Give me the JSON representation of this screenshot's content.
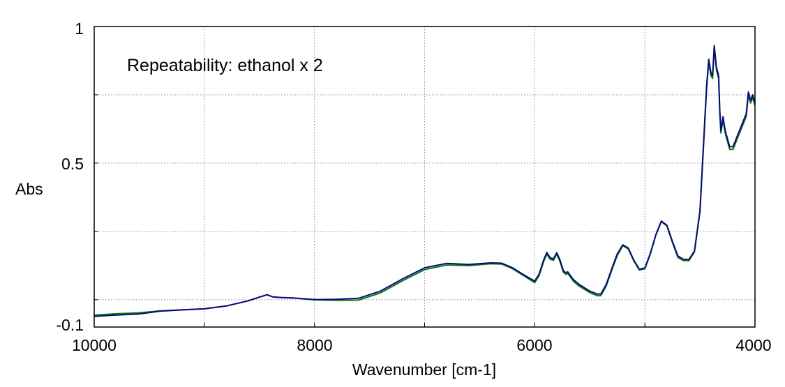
{
  "chart_data": {
    "type": "line",
    "title": "",
    "annotation": "Repeatability: ethanol x 2",
    "xlabel": "Wavenumber [cm-1]",
    "ylabel": "Abs",
    "xlim": [
      10000,
      4000
    ],
    "x_reversed": true,
    "ylim": [
      -0.1,
      1
    ],
    "grid": true,
    "grid_style": "dotted",
    "x_tick_labels": [
      "10000",
      "8000",
      "6000",
      "4000"
    ],
    "y_tick_labels": [
      "1",
      "0.5",
      "-0.1"
    ],
    "x_gridlines": [
      9000,
      8000,
      7000,
      6000,
      5000
    ],
    "y_gridlines": [
      0.75,
      0.5,
      0.25,
      0.0
    ],
    "series": [
      {
        "color": "#0a7a0a",
        "x": [
          10000,
          9800,
          9600,
          9400,
          9200,
          9000,
          8800,
          8600,
          8500,
          8430,
          8380,
          8300,
          8200,
          8000,
          7800,
          7600,
          7400,
          7200,
          7000,
          6800,
          6600,
          6400,
          6300,
          6200,
          6100,
          6000,
          5960,
          5920,
          5890,
          5860,
          5830,
          5800,
          5770,
          5740,
          5720,
          5700,
          5650,
          5600,
          5500,
          5430,
          5400,
          5350,
          5300,
          5250,
          5200,
          5150,
          5100,
          5050,
          5000,
          4950,
          4900,
          4850,
          4800,
          4750,
          4700,
          4650,
          4600,
          4550,
          4500,
          4470,
          4440,
          4420,
          4400,
          4385,
          4370,
          4350,
          4330,
          4320,
          4310,
          4290,
          4275,
          4265,
          4250,
          4230,
          4200,
          4180,
          4160,
          4140,
          4110,
          4080,
          4060,
          4040,
          4020,
          4000
        ],
        "y": [
          -0.0565,
          -0.0513,
          -0.0485,
          -0.0409,
          -0.0371,
          -0.0333,
          -0.0229,
          -0.0037,
          0.0096,
          0.0182,
          0.0105,
          0.0077,
          0.0068,
          -0.0005,
          -0.0025,
          -0.0016,
          0.025,
          0.0694,
          0.11,
          0.1272,
          0.1245,
          0.1318,
          0.1304,
          0.1132,
          0.0878,
          0.0622,
          0.0878,
          0.139,
          0.1672,
          0.1479,
          0.1443,
          0.1672,
          0.1392,
          0.1005,
          0.0933,
          0.096,
          0.0683,
          0.0509,
          0.0257,
          0.0146,
          0.0146,
          0.0509,
          0.1082,
          0.1624,
          0.1978,
          0.1857,
          0.1412,
          0.1085,
          0.1133,
          0.1675,
          0.236,
          0.286,
          0.27,
          0.21,
          0.155,
          0.143,
          0.143,
          0.175,
          0.32,
          0.54,
          0.77,
          0.87,
          0.82,
          0.81,
          0.92,
          0.84,
          0.81,
          0.686,
          0.61,
          0.66,
          0.62,
          0.6,
          0.58,
          0.55,
          0.55,
          0.57,
          0.59,
          0.61,
          0.64,
          0.67,
          0.75,
          0.72,
          0.74,
          0.71
        ]
      },
      {
        "color": "#0a0a7a",
        "x": [
          10000,
          9800,
          9600,
          9400,
          9200,
          9000,
          8800,
          8600,
          8500,
          8430,
          8380,
          8300,
          8200,
          8000,
          7800,
          7600,
          7400,
          7200,
          7000,
          6800,
          6600,
          6400,
          6300,
          6200,
          6100,
          6000,
          5960,
          5920,
          5890,
          5860,
          5830,
          5800,
          5770,
          5740,
          5720,
          5700,
          5650,
          5600,
          5500,
          5430,
          5400,
          5350,
          5300,
          5250,
          5200,
          5150,
          5100,
          5050,
          5000,
          4950,
          4900,
          4850,
          4800,
          4750,
          4700,
          4650,
          4600,
          4550,
          4500,
          4470,
          4440,
          4420,
          4400,
          4385,
          4370,
          4350,
          4330,
          4320,
          4310,
          4290,
          4275,
          4265,
          4250,
          4230,
          4200,
          4180,
          4160,
          4140,
          4110,
          4080,
          4060,
          4040,
          4020,
          4000
        ],
        "y": [
          -0.0613,
          -0.0561,
          -0.0525,
          -0.0417,
          -0.0373,
          -0.0335,
          -0.0229,
          -0.0037,
          0.0096,
          0.0182,
          0.0105,
          0.0077,
          0.0068,
          0.0005,
          0.0013,
          0.0051,
          0.0317,
          0.0761,
          0.1167,
          0.133,
          0.1293,
          0.1347,
          0.1337,
          0.1165,
          0.0911,
          0.068,
          0.0936,
          0.1448,
          0.173,
          0.1537,
          0.1491,
          0.172,
          0.145,
          0.1063,
          0.0991,
          0.1018,
          0.0741,
          0.0567,
          0.0315,
          0.0204,
          0.0204,
          0.0567,
          0.114,
          0.1682,
          0.2008,
          0.1887,
          0.1442,
          0.1115,
          0.1163,
          0.1705,
          0.238,
          0.288,
          0.273,
          0.214,
          0.16,
          0.148,
          0.147,
          0.178,
          0.325,
          0.55,
          0.78,
          0.88,
          0.83,
          0.82,
          0.93,
          0.85,
          0.82,
          0.696,
          0.62,
          0.67,
          0.63,
          0.61,
          0.59,
          0.56,
          0.56,
          0.58,
          0.6,
          0.62,
          0.65,
          0.68,
          0.76,
          0.73,
          0.75,
          0.72
        ]
      }
    ]
  }
}
